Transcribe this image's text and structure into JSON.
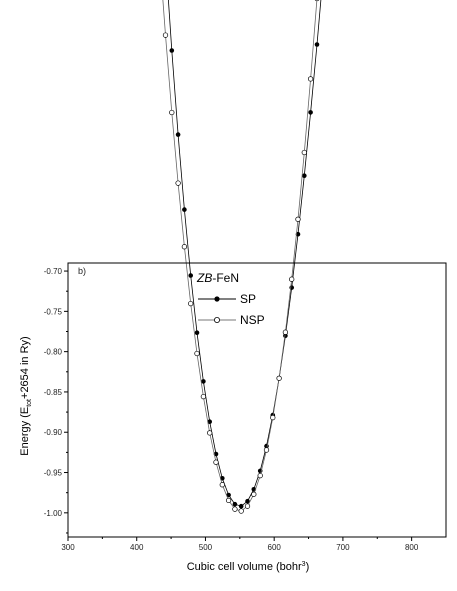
{
  "chart_data": {
    "type": "scatter",
    "panel_label": "b)",
    "legend_title_italic": "ZB",
    "legend_title_rest": "-FeN",
    "xlabel_main": "Cubic cell volume (bohr",
    "xlabel_sup": "3",
    "xlabel_end": ")",
    "ylabel_main": "Energy (E",
    "ylabel_sub": "tot",
    "ylabel_end": "+2654 in Ry)",
    "xlim": [
      300,
      850
    ],
    "ylim": [
      -1.03,
      -0.69
    ],
    "xticks": [
      300,
      400,
      500,
      600,
      700,
      800
    ],
    "xtick_labels": [
      "300",
      "400",
      "500",
      "600",
      "700",
      "800"
    ],
    "yticks": [
      -0.7,
      -0.75,
      -0.8,
      -0.85,
      -0.9,
      -0.95,
      -1.0
    ],
    "ytick_labels": [
      "-0.70",
      "-0.75",
      "-0.80",
      "-0.85",
      "-0.90",
      "-0.95",
      "-1.00"
    ],
    "legend_position": "top-left",
    "series": [
      {
        "name": "SP",
        "marker": "filled-circle",
        "color": "#000000",
        "v0": 550,
        "e0": -0.992,
        "a": 5.2e-05,
        "b": -5.8e-08,
        "v_start": 350,
        "v_end": 800,
        "points": 50
      },
      {
        "name": "NSP",
        "marker": "open-circle",
        "color": "#000000",
        "v0": 550,
        "e0": -0.998,
        "a": 5.05e-05,
        "b": 0,
        "v_start": 350,
        "v_end": 800,
        "points": 50
      }
    ]
  }
}
